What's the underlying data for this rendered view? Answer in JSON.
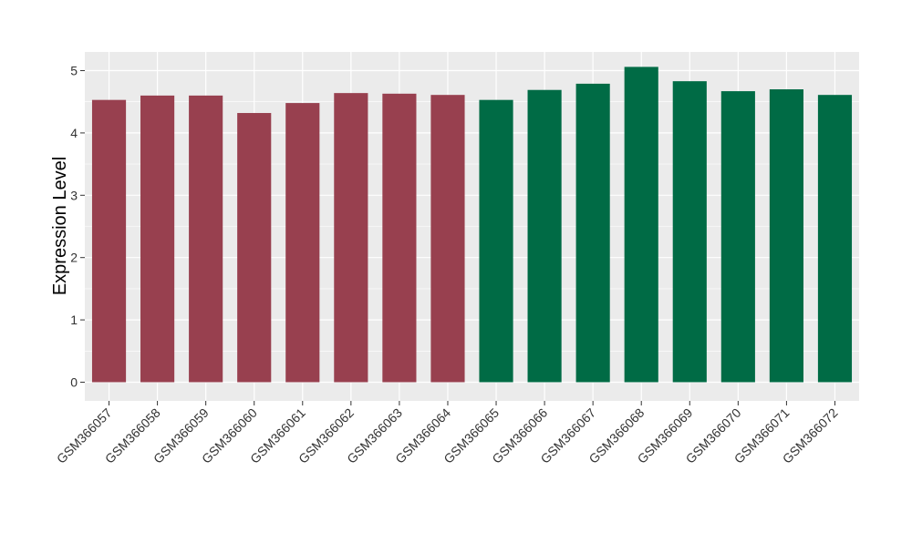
{
  "chart_data": {
    "type": "bar",
    "title": "",
    "xlabel": "",
    "ylabel": "Expression Level",
    "ylim": [
      -0.3,
      5.3
    ],
    "yticks": [
      0,
      1,
      2,
      3,
      4,
      5
    ],
    "grid": true,
    "legend": "none",
    "categories": [
      "GSM366057",
      "GSM366058",
      "GSM366059",
      "GSM366060",
      "GSM366061",
      "GSM366062",
      "GSM366063",
      "GSM366064",
      "GSM366065",
      "GSM366066",
      "GSM366067",
      "GSM366068",
      "GSM366069",
      "GSM366070",
      "GSM366071",
      "GSM366072"
    ],
    "values": [
      4.53,
      4.6,
      4.6,
      4.32,
      4.48,
      4.64,
      4.63,
      4.61,
      4.53,
      4.69,
      4.79,
      5.06,
      4.83,
      4.67,
      4.7,
      4.61
    ],
    "group": [
      0,
      0,
      0,
      0,
      0,
      0,
      0,
      0,
      1,
      1,
      1,
      1,
      1,
      1,
      1,
      1
    ],
    "colors": [
      "#98404f",
      "#006b45"
    ],
    "panel_background": "#ebebeb",
    "grid_color": "#ffffff"
  }
}
